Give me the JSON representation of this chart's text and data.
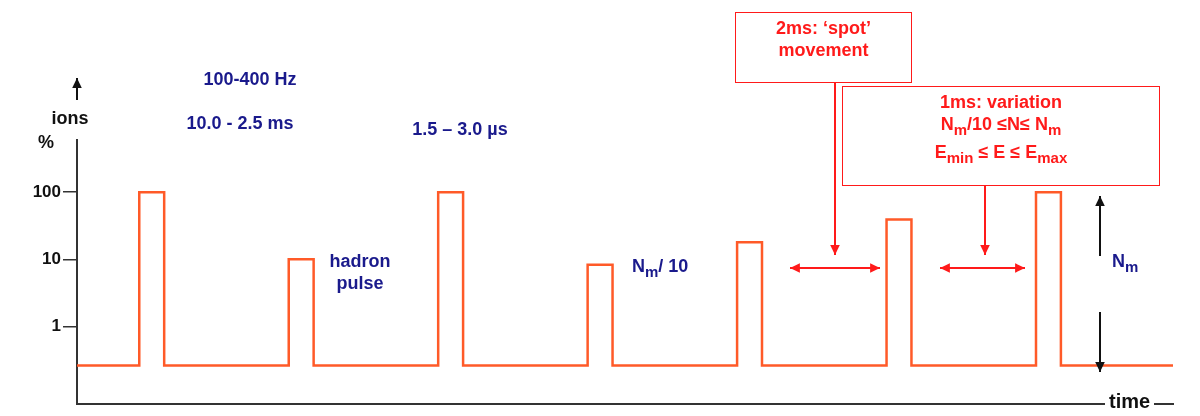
{
  "chart_data": {
    "type": "step",
    "xlabel": "time",
    "ylabel": "ions\n%",
    "log": "y",
    "ylim": [
      0.07,
      600
    ],
    "yticks": [
      1,
      10,
      100
    ],
    "tick_labels": "y",
    "legend": false,
    "grid": false,
    "categories": [
      null,
      null,
      null,
      null,
      null,
      null,
      null,
      null,
      null,
      null,
      null,
      null,
      null,
      null,
      null,
      null,
      null,
      null,
      null,
      null,
      null,
      null,
      null,
      null,
      null,
      null,
      null,
      null,
      null,
      null,
      null,
      null,
      null,
      null,
      null,
      null,
      null,
      null,
      null,
      null,
      null,
      null,
      null,
      null,
      null
    ],
    "series": [
      {
        "color": "#ff5a28",
        "line_style": "solid",
        "values": [
          0.26,
          0.26,
          0.26,
          100,
          0.26,
          0.26,
          0.26,
          0.26,
          0.26,
          10,
          0.26,
          0.26,
          0.26,
          0.26,
          0.26,
          100,
          0.26,
          0.26,
          0.26,
          0.26,
          0.26,
          8.3,
          0.26,
          0.26,
          0.26,
          0.26,
          0.26,
          18,
          0.26,
          0.26,
          0.26,
          0.26,
          0.26,
          39,
          0.26,
          0.26,
          0.26,
          0.26,
          0.26,
          100,
          0.26,
          0.26,
          0.26,
          0.26,
          0.26
        ]
      }
    ],
    "annotations": [
      "100-400 Hz",
      "10.0 - 2.5 ms",
      "1.5 – 3.0 µs",
      "hadron pulse",
      "N$_{m}$/ 10",
      "2ms: ‘spot’\nmovement",
      "1ms: variation\nN$_{m}$/10 ≤N≤ N$_{m}$\nE$_{min}$ ≤ E ≤ E$_{max}$",
      "N$_{m}$"
    ]
  }
}
